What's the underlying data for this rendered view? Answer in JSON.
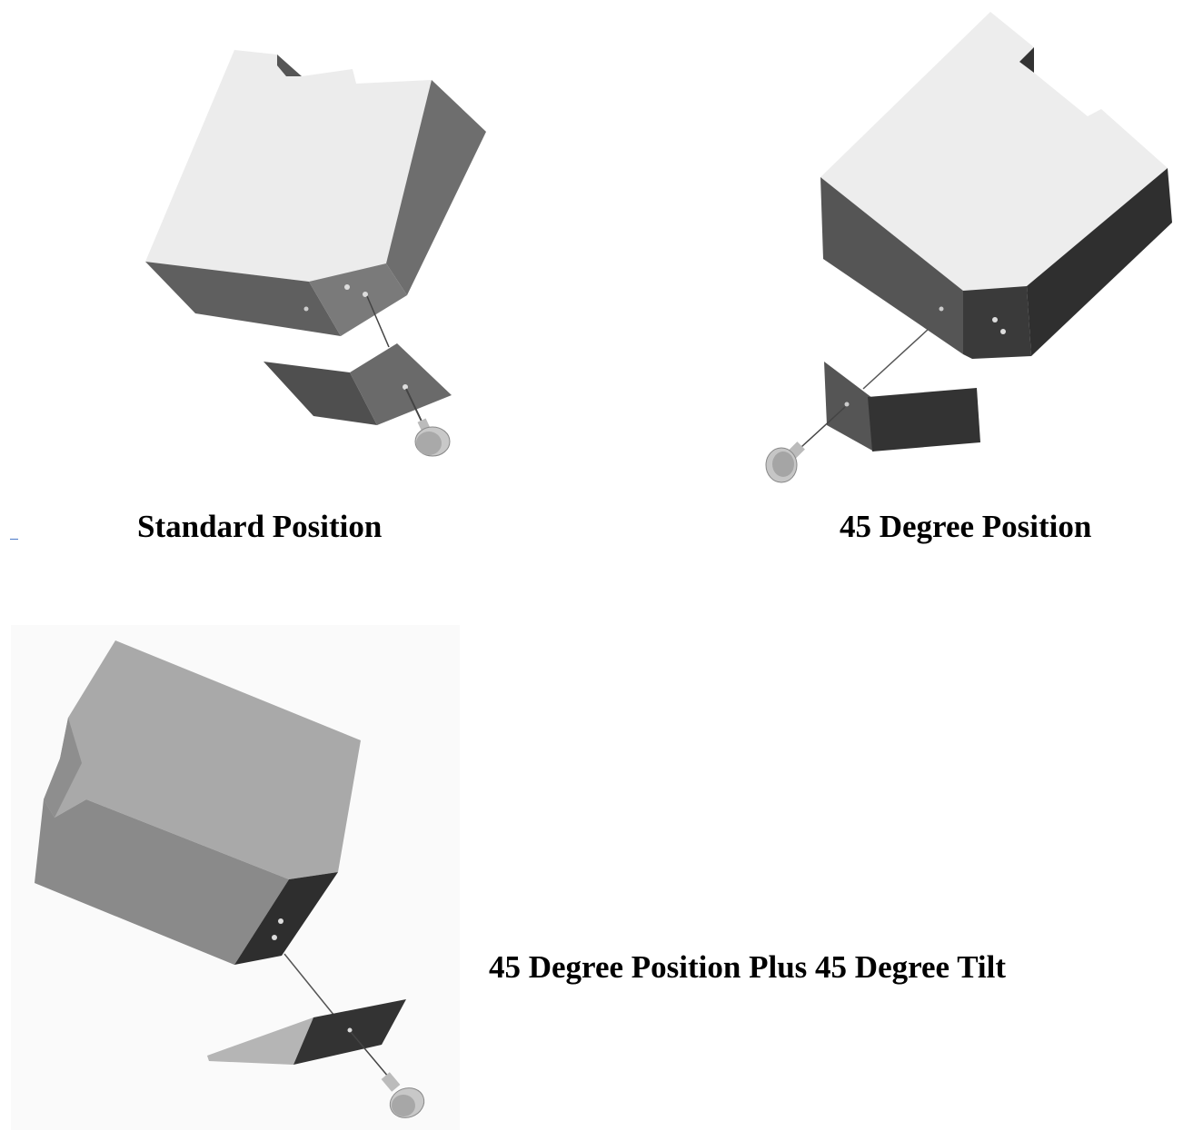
{
  "captions": {
    "standard": "Standard Position",
    "deg45": "45 Degree Position",
    "deg45tilt": "45 Degree Position Plus 45 Degree Tilt"
  },
  "colors": {
    "light_face": "#ececec",
    "mid_face": "#6b6b6b",
    "dark_face": "#303030",
    "tilt_top": "#a8a8a8",
    "tilt_front": "#8a8a8a",
    "pin": "#c8c8c8"
  },
  "icons": [
    "housing-block",
    "mounting-bracket",
    "thumb-screw",
    "guide-rod"
  ]
}
